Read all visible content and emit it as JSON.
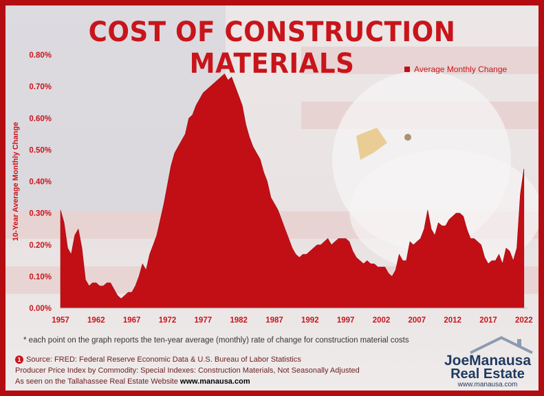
{
  "title": "COST OF CONSTRUCTION MATERIALS",
  "footnote": "* each point on the graph reports the ten-year average (monthly) rate of change for construction material costs",
  "sources": {
    "badge": "1",
    "line1": "Source: FRED: Federal Reserve Economic Data & U.S. Bureau of Labor Statistics",
    "line2": "Producer Price Index by Commodity: Special Indexes: Construction Materials, Not Seasonally Adjusted",
    "line3_prefix": "As seen on the Tallahassee Real Estate Website",
    "line3_link": "www.manausa.com"
  },
  "logo": {
    "name": "JoeManausa",
    "sub": "Real Estate",
    "url": "www.manausa.com"
  },
  "colors": {
    "accent": "#c8151b",
    "area": "#c20f15",
    "frame": "#b30d12"
  },
  "chart_data": {
    "type": "area",
    "ylabel": "10-Year Average Monthly Change",
    "xlabel": "",
    "legend": "Average Monthly Change",
    "legend_position": "top-right",
    "ylim": [
      0,
      0.008
    ],
    "xlim": [
      1957,
      2022.5
    ],
    "y_ticks": [
      "0.00%",
      "0.10%",
      "0.20%",
      "0.30%",
      "0.40%",
      "0.50%",
      "0.60%",
      "0.70%",
      "0.80%"
    ],
    "x_ticks": [
      "1957",
      "1962",
      "1967",
      "1972",
      "1977",
      "1982",
      "1987",
      "1992",
      "1997",
      "2002",
      "2007",
      "2012",
      "2017",
      "2022"
    ],
    "grid": false,
    "x": [
      1957,
      1957.5,
      1958,
      1958.5,
      1959,
      1959.5,
      1960,
      1960.5,
      1961,
      1961.5,
      1962,
      1962.5,
      1963,
      1963.5,
      1964,
      1964.5,
      1965,
      1965.5,
      1966,
      1966.5,
      1967,
      1967.5,
      1968,
      1968.5,
      1969,
      1969.5,
      1970,
      1970.5,
      1971,
      1971.5,
      1972,
      1972.5,
      1973,
      1973.5,
      1974,
      1974.5,
      1975,
      1975.5,
      1976,
      1976.5,
      1977,
      1977.5,
      1978,
      1978.5,
      1979,
      1979.5,
      1980,
      1980.5,
      1981,
      1981.5,
      1982,
      1982.5,
      1983,
      1983.5,
      1984,
      1984.5,
      1985,
      1985.5,
      1986,
      1986.5,
      1987,
      1987.5,
      1988,
      1988.5,
      1989,
      1989.5,
      1990,
      1990.5,
      1991,
      1991.5,
      1992,
      1992.5,
      1993,
      1993.5,
      1994,
      1994.5,
      1995,
      1995.5,
      1996,
      1996.5,
      1997,
      1997.5,
      1998,
      1998.5,
      1999,
      1999.5,
      2000,
      2000.5,
      2001,
      2001.5,
      2002,
      2002.5,
      2003,
      2003.5,
      2004,
      2004.5,
      2005,
      2005.5,
      2006,
      2006.5,
      2007,
      2007.5,
      2008,
      2008.5,
      2009,
      2009.5,
      2010,
      2010.5,
      2011,
      2011.5,
      2012,
      2012.5,
      2013,
      2013.5,
      2014,
      2014.5,
      2015,
      2015.5,
      2016,
      2016.5,
      2017,
      2017.5,
      2018,
      2018.5,
      2019,
      2019.5,
      2020,
      2020.5,
      2021,
      2021.5,
      2022
    ],
    "values": [
      0.0031,
      0.0027,
      0.0019,
      0.0017,
      0.0023,
      0.0025,
      0.0019,
      0.0009,
      0.0007,
      0.0008,
      0.0008,
      0.0007,
      0.0007,
      0.0008,
      0.0008,
      0.0006,
      0.0004,
      0.0003,
      0.0004,
      0.0005,
      0.0005,
      0.0007,
      0.001,
      0.0014,
      0.0012,
      0.0017,
      0.002,
      0.0023,
      0.0028,
      0.0033,
      0.0039,
      0.0045,
      0.0049,
      0.0051,
      0.0053,
      0.0055,
      0.006,
      0.0061,
      0.0064,
      0.0066,
      0.0068,
      0.0069,
      0.007,
      0.0071,
      0.0072,
      0.0073,
      0.0074,
      0.0072,
      0.0073,
      0.007,
      0.0067,
      0.0064,
      0.0058,
      0.0054,
      0.0051,
      0.0049,
      0.0047,
      0.0043,
      0.004,
      0.0035,
      0.0033,
      0.0031,
      0.0028,
      0.0025,
      0.0022,
      0.0019,
      0.0017,
      0.0016,
      0.0017,
      0.0017,
      0.0018,
      0.0019,
      0.002,
      0.002,
      0.0021,
      0.0022,
      0.002,
      0.0021,
      0.0022,
      0.0022,
      0.0022,
      0.0021,
      0.0018,
      0.0016,
      0.0015,
      0.0014,
      0.0015,
      0.0014,
      0.0014,
      0.0013,
      0.0013,
      0.0013,
      0.0011,
      0.001,
      0.0012,
      0.0017,
      0.0015,
      0.0015,
      0.0021,
      0.002,
      0.0021,
      0.0022,
      0.0025,
      0.0031,
      0.0025,
      0.0023,
      0.0027,
      0.0026,
      0.0026,
      0.0028,
      0.0029,
      0.003,
      0.003,
      0.0029,
      0.0025,
      0.0022,
      0.0022,
      0.0021,
      0.002,
      0.0016,
      0.0014,
      0.0015,
      0.0015,
      0.0017,
      0.0014,
      0.0019,
      0.0018,
      0.0015,
      0.0019,
      0.0036,
      0.0044
    ]
  }
}
